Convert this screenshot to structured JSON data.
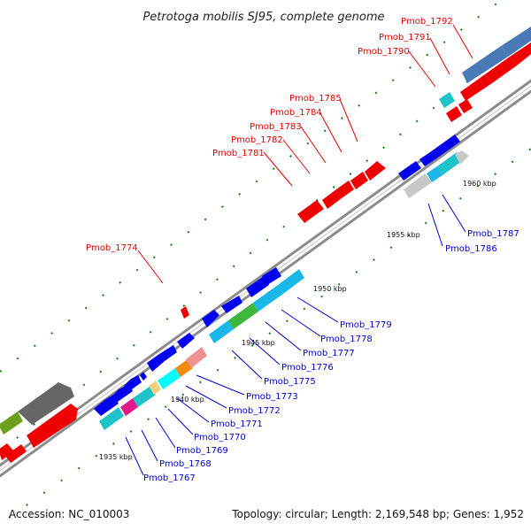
{
  "title": "Petrotoga mobilis SJ95, complete genome",
  "footer": {
    "accession": "Accession: NC_010003",
    "topology": "Topology: circular; Length: 2,169,548 bp; Genes: 1,952"
  },
  "scale_labels": [
    "1935 kbp",
    "1940 kbp",
    "1945 kbp",
    "1950 kbp",
    "1955 kbp",
    "1960 kbp"
  ],
  "red_labels": [
    "Pmob_1774",
    "Pmob_1781",
    "Pmob_1782",
    "Pmob_1783",
    "Pmob_1784",
    "Pmob_1785",
    "Pmob_1790",
    "Pmob_1791",
    "Pmob_1792"
  ],
  "blue_labels": [
    "Pmob_1767",
    "Pmob_1768",
    "Pmob_1769",
    "Pmob_1770",
    "Pmob_1771",
    "Pmob_1772",
    "Pmob_1773",
    "Pmob_1775",
    "Pmob_1776",
    "Pmob_1777",
    "Pmob_1778",
    "Pmob_1779",
    "Pmob_1786",
    "Pmob_1787"
  ],
  "colors": {
    "forward_gene": "#ff0000",
    "reverse_gene": "#0000ee",
    "backbone": "#8c8c8c",
    "tick": "#1a7a1a",
    "red_label": "#e00000",
    "blue_label": "#0000cc"
  }
}
